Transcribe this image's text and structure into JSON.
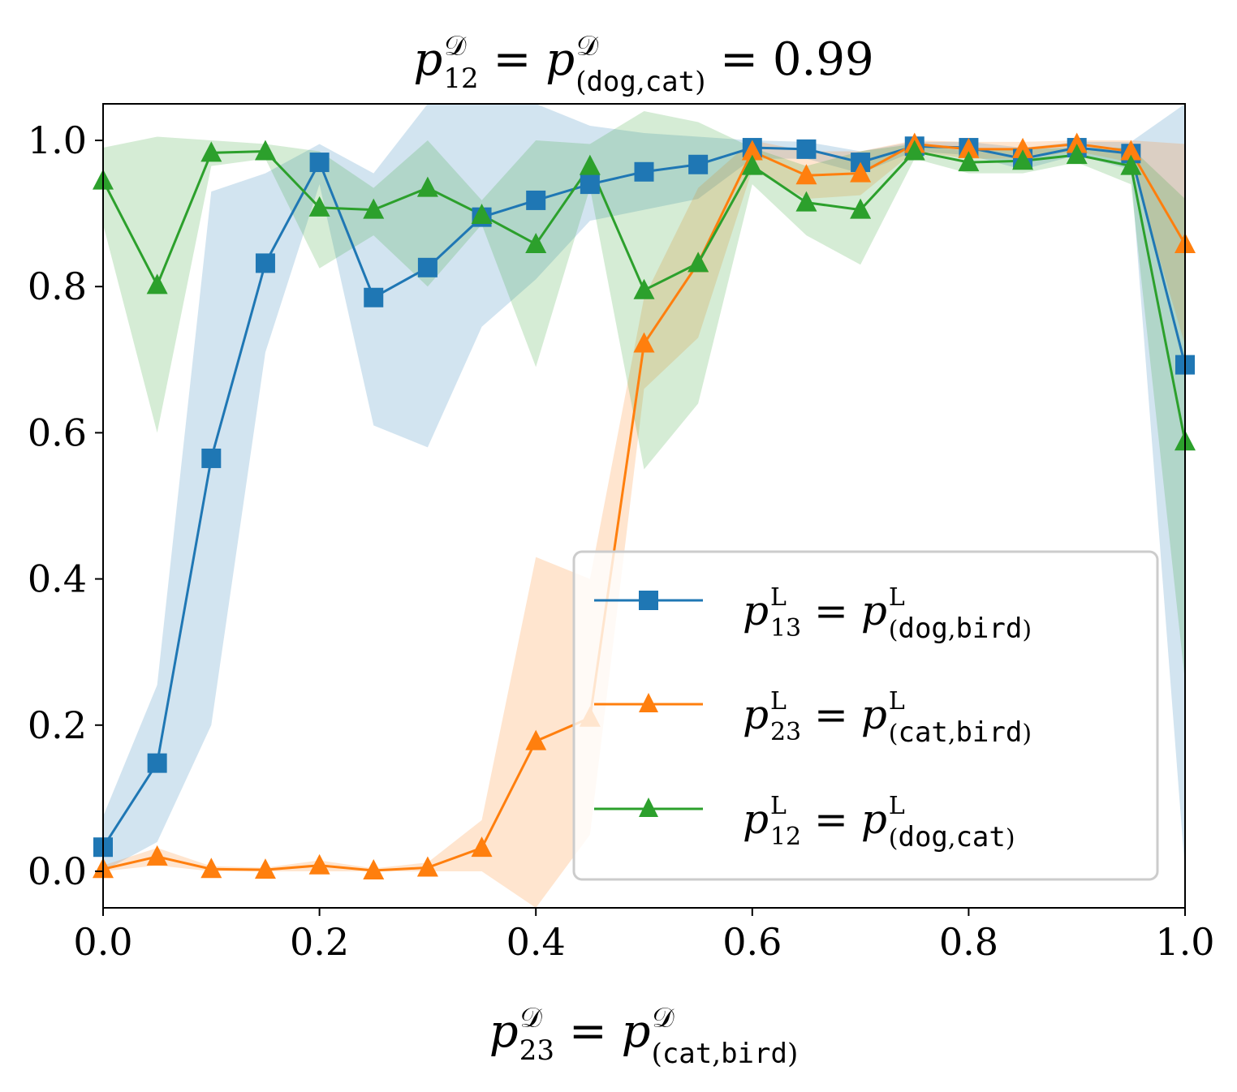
{
  "chart_data": {
    "type": "line",
    "title": {
      "p": "p",
      "sup": "𝒟",
      "sub": "12",
      "eq": " = ",
      "p2": "p",
      "sup2": "𝒟",
      "sub2_open": "(",
      "sub2_a": "dog",
      "sub2_comma": ",",
      "sub2_b": "cat",
      "sub2_close": ")",
      "tail": " = 0.99"
    },
    "xlabel": {
      "p": "p",
      "sup": "𝒟",
      "sub": "23",
      "eq": " = ",
      "p2": "p",
      "sup2": "𝒟",
      "sub2_open": "(",
      "sub2_a": "cat",
      "sub2_comma": ",",
      "sub2_b": "bird",
      "sub2_close": ")"
    },
    "ylabel": "",
    "xlim": [
      0.0,
      1.0
    ],
    "ylim": [
      -0.05,
      1.05
    ],
    "xticks": [
      "0.0",
      "0.2",
      "0.4",
      "0.6",
      "0.8",
      "1.0"
    ],
    "yticks": [
      "0.0",
      "0.2",
      "0.4",
      "0.6",
      "0.8",
      "1.0"
    ],
    "xtick_values": [
      0.0,
      0.2,
      0.4,
      0.6,
      0.8,
      1.0
    ],
    "ytick_values": [
      0.0,
      0.2,
      0.4,
      0.6,
      0.8,
      1.0
    ],
    "x": [
      0.0,
      0.05,
      0.1,
      0.15,
      0.2,
      0.25,
      0.3,
      0.35,
      0.4,
      0.45,
      0.5,
      0.55,
      0.6,
      0.65,
      0.7,
      0.75,
      0.8,
      0.85,
      0.9,
      0.95,
      1.0
    ],
    "legend_position": "lower-right",
    "series": [
      {
        "name": "p13 = p(dog,bird)",
        "legend": {
          "p": "p",
          "sup": "L",
          "sub": "13",
          "eq": " = ",
          "p2": "p",
          "sup2": "L",
          "sub2_open": "(",
          "sub2_a": "dog",
          "sub2_comma": ",",
          "sub2_b": "bird",
          "sub2_close": ")"
        },
        "color": "#1f77b4",
        "marker": "square",
        "values": [
          0.033,
          0.148,
          0.565,
          0.832,
          0.97,
          0.785,
          0.826,
          0.895,
          0.918,
          0.94,
          0.957,
          0.967,
          0.99,
          0.988,
          0.97,
          0.992,
          0.99,
          0.975,
          0.99,
          0.982,
          0.693
        ],
        "lower": [
          0.0,
          0.04,
          0.2,
          0.71,
          0.94,
          0.61,
          0.58,
          0.745,
          0.81,
          0.89,
          0.905,
          0.92,
          0.975,
          0.975,
          0.955,
          0.985,
          0.98,
          0.96,
          0.98,
          0.96,
          0.0
        ],
        "upper": [
          0.075,
          0.255,
          0.93,
          0.955,
          0.995,
          0.955,
          1.05,
          1.05,
          1.05,
          1.02,
          1.01,
          1.005,
          1.0,
          0.998,
          0.985,
          0.998,
          0.998,
          0.99,
          0.998,
          0.998,
          1.05
        ]
      },
      {
        "name": "p23 = p(cat,bird)",
        "legend": {
          "p": "p",
          "sup": "L",
          "sub": "23",
          "eq": " = ",
          "p2": "p",
          "sup2": "L",
          "sub2_open": "(",
          "sub2_a": "cat",
          "sub2_comma": ",",
          "sub2_b": "bird",
          "sub2_close": ")"
        },
        "color": "#ff7f0e",
        "marker": "triangle",
        "values": [
          0.003,
          0.02,
          0.003,
          0.002,
          0.008,
          0.001,
          0.005,
          0.032,
          0.178,
          0.21,
          0.722,
          0.832,
          0.985,
          0.952,
          0.955,
          0.995,
          0.988,
          0.988,
          0.995,
          0.985,
          0.858
        ],
        "lower": [
          0.0,
          0.008,
          0.0,
          0.0,
          0.0,
          0.0,
          0.0,
          0.0,
          -0.05,
          0.05,
          0.66,
          0.73,
          0.96,
          0.92,
          0.925,
          0.985,
          0.975,
          0.975,
          0.985,
          0.97,
          0.72
        ],
        "upper": [
          0.008,
          0.032,
          0.007,
          0.005,
          0.015,
          0.004,
          0.012,
          0.07,
          0.43,
          0.4,
          0.785,
          0.935,
          1.0,
          0.985,
          0.985,
          1.0,
          0.998,
          0.998,
          1.0,
          1.0,
          0.995
        ]
      },
      {
        "name": "p12 = p(dog,cat)",
        "legend": {
          "p": "p",
          "sup": "L",
          "sub": "12",
          "eq": " = ",
          "p2": "p",
          "sup2": "L",
          "sub2_open": "(",
          "sub2_a": "dog",
          "sub2_comma": ",",
          "sub2_b": "cat",
          "sub2_close": ")"
        },
        "color": "#2ca02c",
        "marker": "triangle",
        "values": [
          0.945,
          0.802,
          0.983,
          0.985,
          0.908,
          0.905,
          0.935,
          0.898,
          0.858,
          0.965,
          0.795,
          0.832,
          0.965,
          0.915,
          0.905,
          0.985,
          0.97,
          0.972,
          0.98,
          0.965,
          0.588
        ],
        "lower": [
          0.885,
          0.6,
          0.965,
          0.975,
          0.825,
          0.87,
          0.8,
          0.885,
          0.69,
          0.935,
          0.55,
          0.64,
          0.94,
          0.87,
          0.83,
          0.975,
          0.955,
          0.955,
          0.97,
          0.94,
          0.26
        ],
        "upper": [
          0.99,
          1.005,
          1.0,
          0.995,
          0.985,
          0.935,
          1.0,
          0.918,
          1.0,
          0.995,
          1.04,
          1.025,
          0.99,
          0.965,
          0.985,
          0.995,
          0.985,
          0.988,
          0.99,
          0.99,
          0.92
        ]
      }
    ]
  }
}
